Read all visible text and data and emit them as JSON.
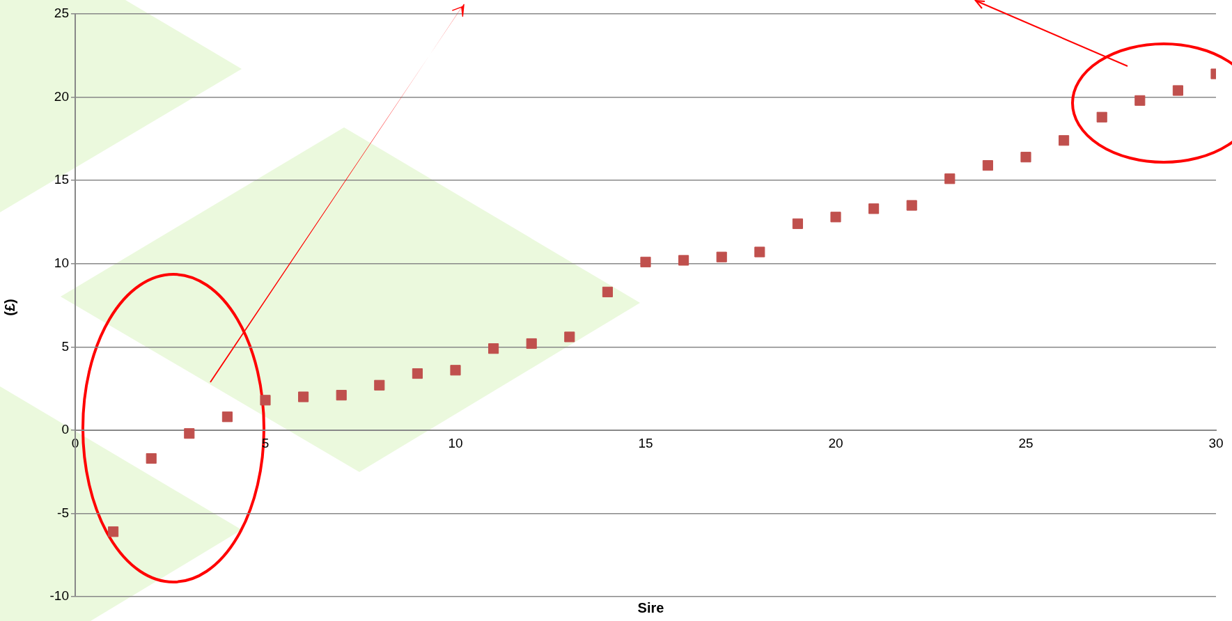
{
  "chart_data": {
    "type": "scatter",
    "xlabel": "Sire",
    "ylabel": "(£)",
    "color": "#c0504d",
    "marker": "square",
    "grid": "y",
    "x": [
      1,
      2,
      3,
      4,
      5,
      6,
      7,
      8,
      9,
      10,
      11,
      12,
      13,
      14,
      15,
      16,
      17,
      18,
      19,
      20,
      21,
      22,
      23,
      24,
      25,
      26,
      27,
      28,
      29,
      30
    ],
    "values": [
      -6.1,
      -1.7,
      -0.2,
      0.8,
      1.8,
      2.0,
      2.1,
      2.7,
      3.4,
      3.6,
      4.9,
      5.2,
      5.6,
      8.3,
      10.1,
      10.2,
      10.4,
      10.7,
      12.4,
      12.8,
      13.3,
      13.5,
      15.1,
      15.9,
      16.4,
      17.4,
      18.8,
      19.8,
      20.4,
      21.4
    ],
    "xlim": [
      0,
      30
    ],
    "xticks": [
      0,
      5,
      10,
      15,
      20,
      25,
      30
    ],
    "ylim": [
      -10,
      25
    ],
    "yticks": [
      -10,
      -5,
      0,
      5,
      10,
      15,
      20,
      25
    ]
  }
}
